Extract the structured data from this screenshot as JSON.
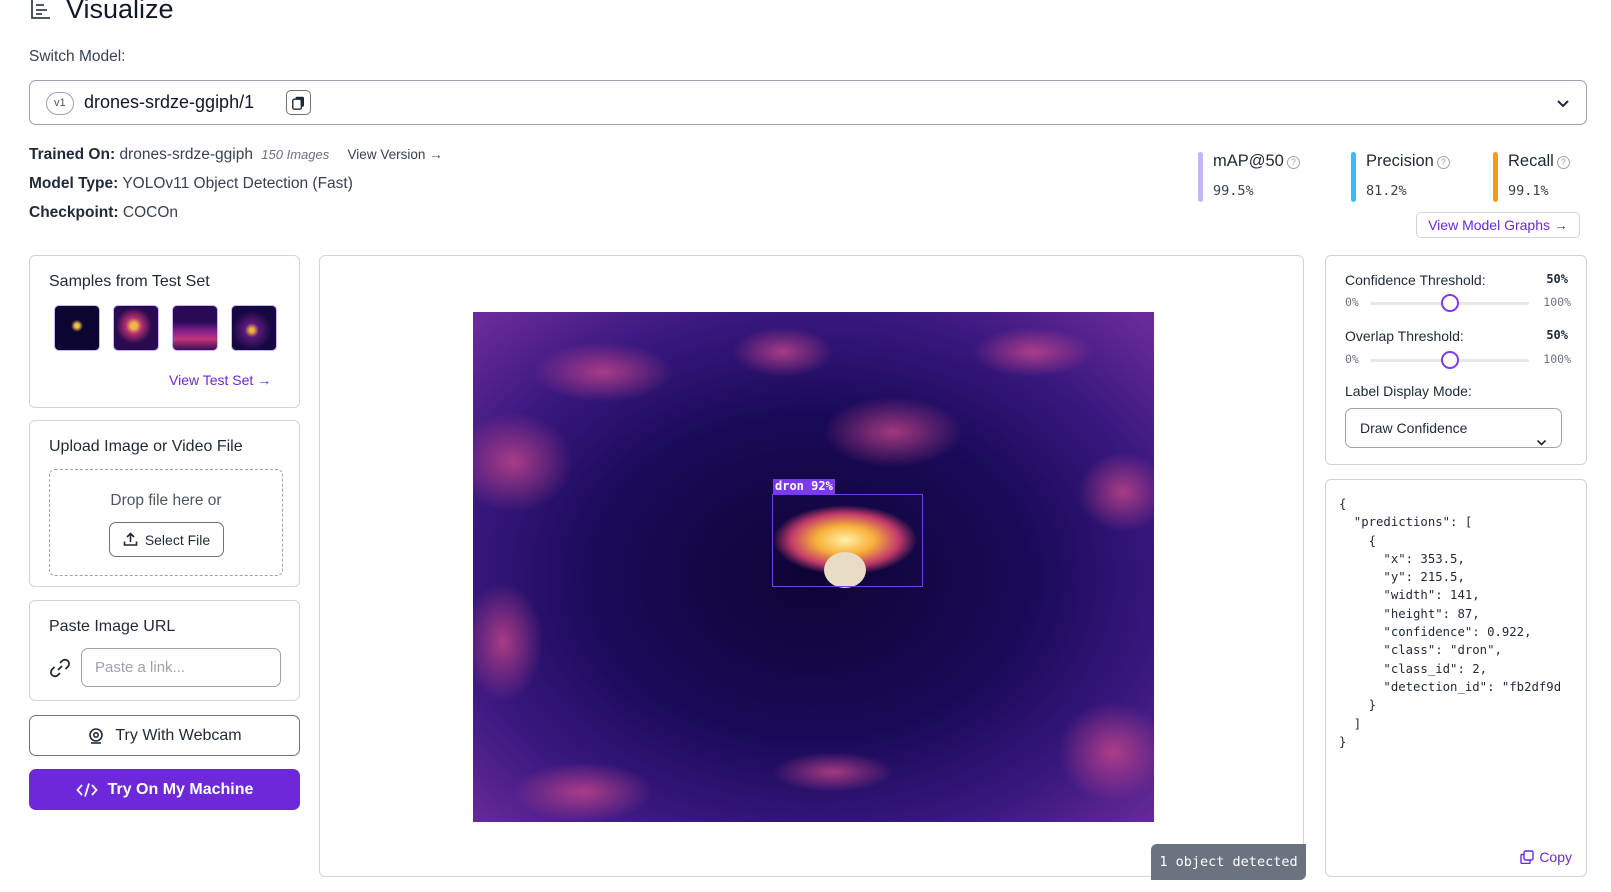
{
  "header": {
    "title": "Visualize",
    "icon": "list-lines-icon"
  },
  "switch_model": {
    "label": "Switch Model:",
    "version_pill": "v1",
    "model_name": "drones-srdze-ggiph/1"
  },
  "meta": {
    "trained_on_label": "Trained On:",
    "trained_on_value": "drones-srdze-ggiph",
    "images_count": "150 Images",
    "view_version": "View Version →",
    "model_type_label": "Model Type:",
    "model_type_value": "YOLOv11 Object Detection (Fast)",
    "checkpoint_label": "Checkpoint:",
    "checkpoint_value": "COCOn"
  },
  "metrics": [
    {
      "name": "mAP@50",
      "value": "99.5%",
      "color": "#c4b5fd"
    },
    {
      "name": "Precision",
      "value": "81.2%",
      "color": "#38bdf8"
    },
    {
      "name": "Recall",
      "value": "99.1%",
      "color": "#f59e0b"
    }
  ],
  "view_graphs": "View Model Graphs →",
  "samples": {
    "title": "Samples from Test Set",
    "view_link": "View Test Set →"
  },
  "upload": {
    "title": "Upload Image or Video File",
    "drop_text": "Drop file here or",
    "select_button": "Select File"
  },
  "paste_url": {
    "title": "Paste Image URL",
    "placeholder": "Paste a link..."
  },
  "buttons": {
    "webcam": "Try With Webcam",
    "machine": "Try On My Machine"
  },
  "viewer": {
    "detection_label": "dron 92%",
    "count_badge": "1 object detected"
  },
  "settings": {
    "confidence_label": "Confidence Threshold:",
    "confidence_value": "50%",
    "confidence_level": 0.5,
    "overlap_label": "Overlap Threshold:",
    "overlap_value": "50%",
    "overlap_level": 0.5,
    "range_min": "0%",
    "range_max": "100%",
    "label_mode_label": "Label Display Mode:",
    "label_mode_value": "Draw Confidence"
  },
  "json_output": {
    "text": "{\n  \"predictions\": [\n    {\n      \"x\": 353.5,\n      \"y\": 215.5,\n      \"width\": 141,\n      \"height\": 87,\n      \"confidence\": 0.922,\n      \"class\": \"dron\",\n      \"class_id\": 2,\n      \"detection_id\": \"fb2df9d\n    }\n  ]\n}",
    "copy_label": "Copy"
  },
  "colors": {
    "accent": "#6d28d9",
    "detect_box": "#7c3aed"
  }
}
